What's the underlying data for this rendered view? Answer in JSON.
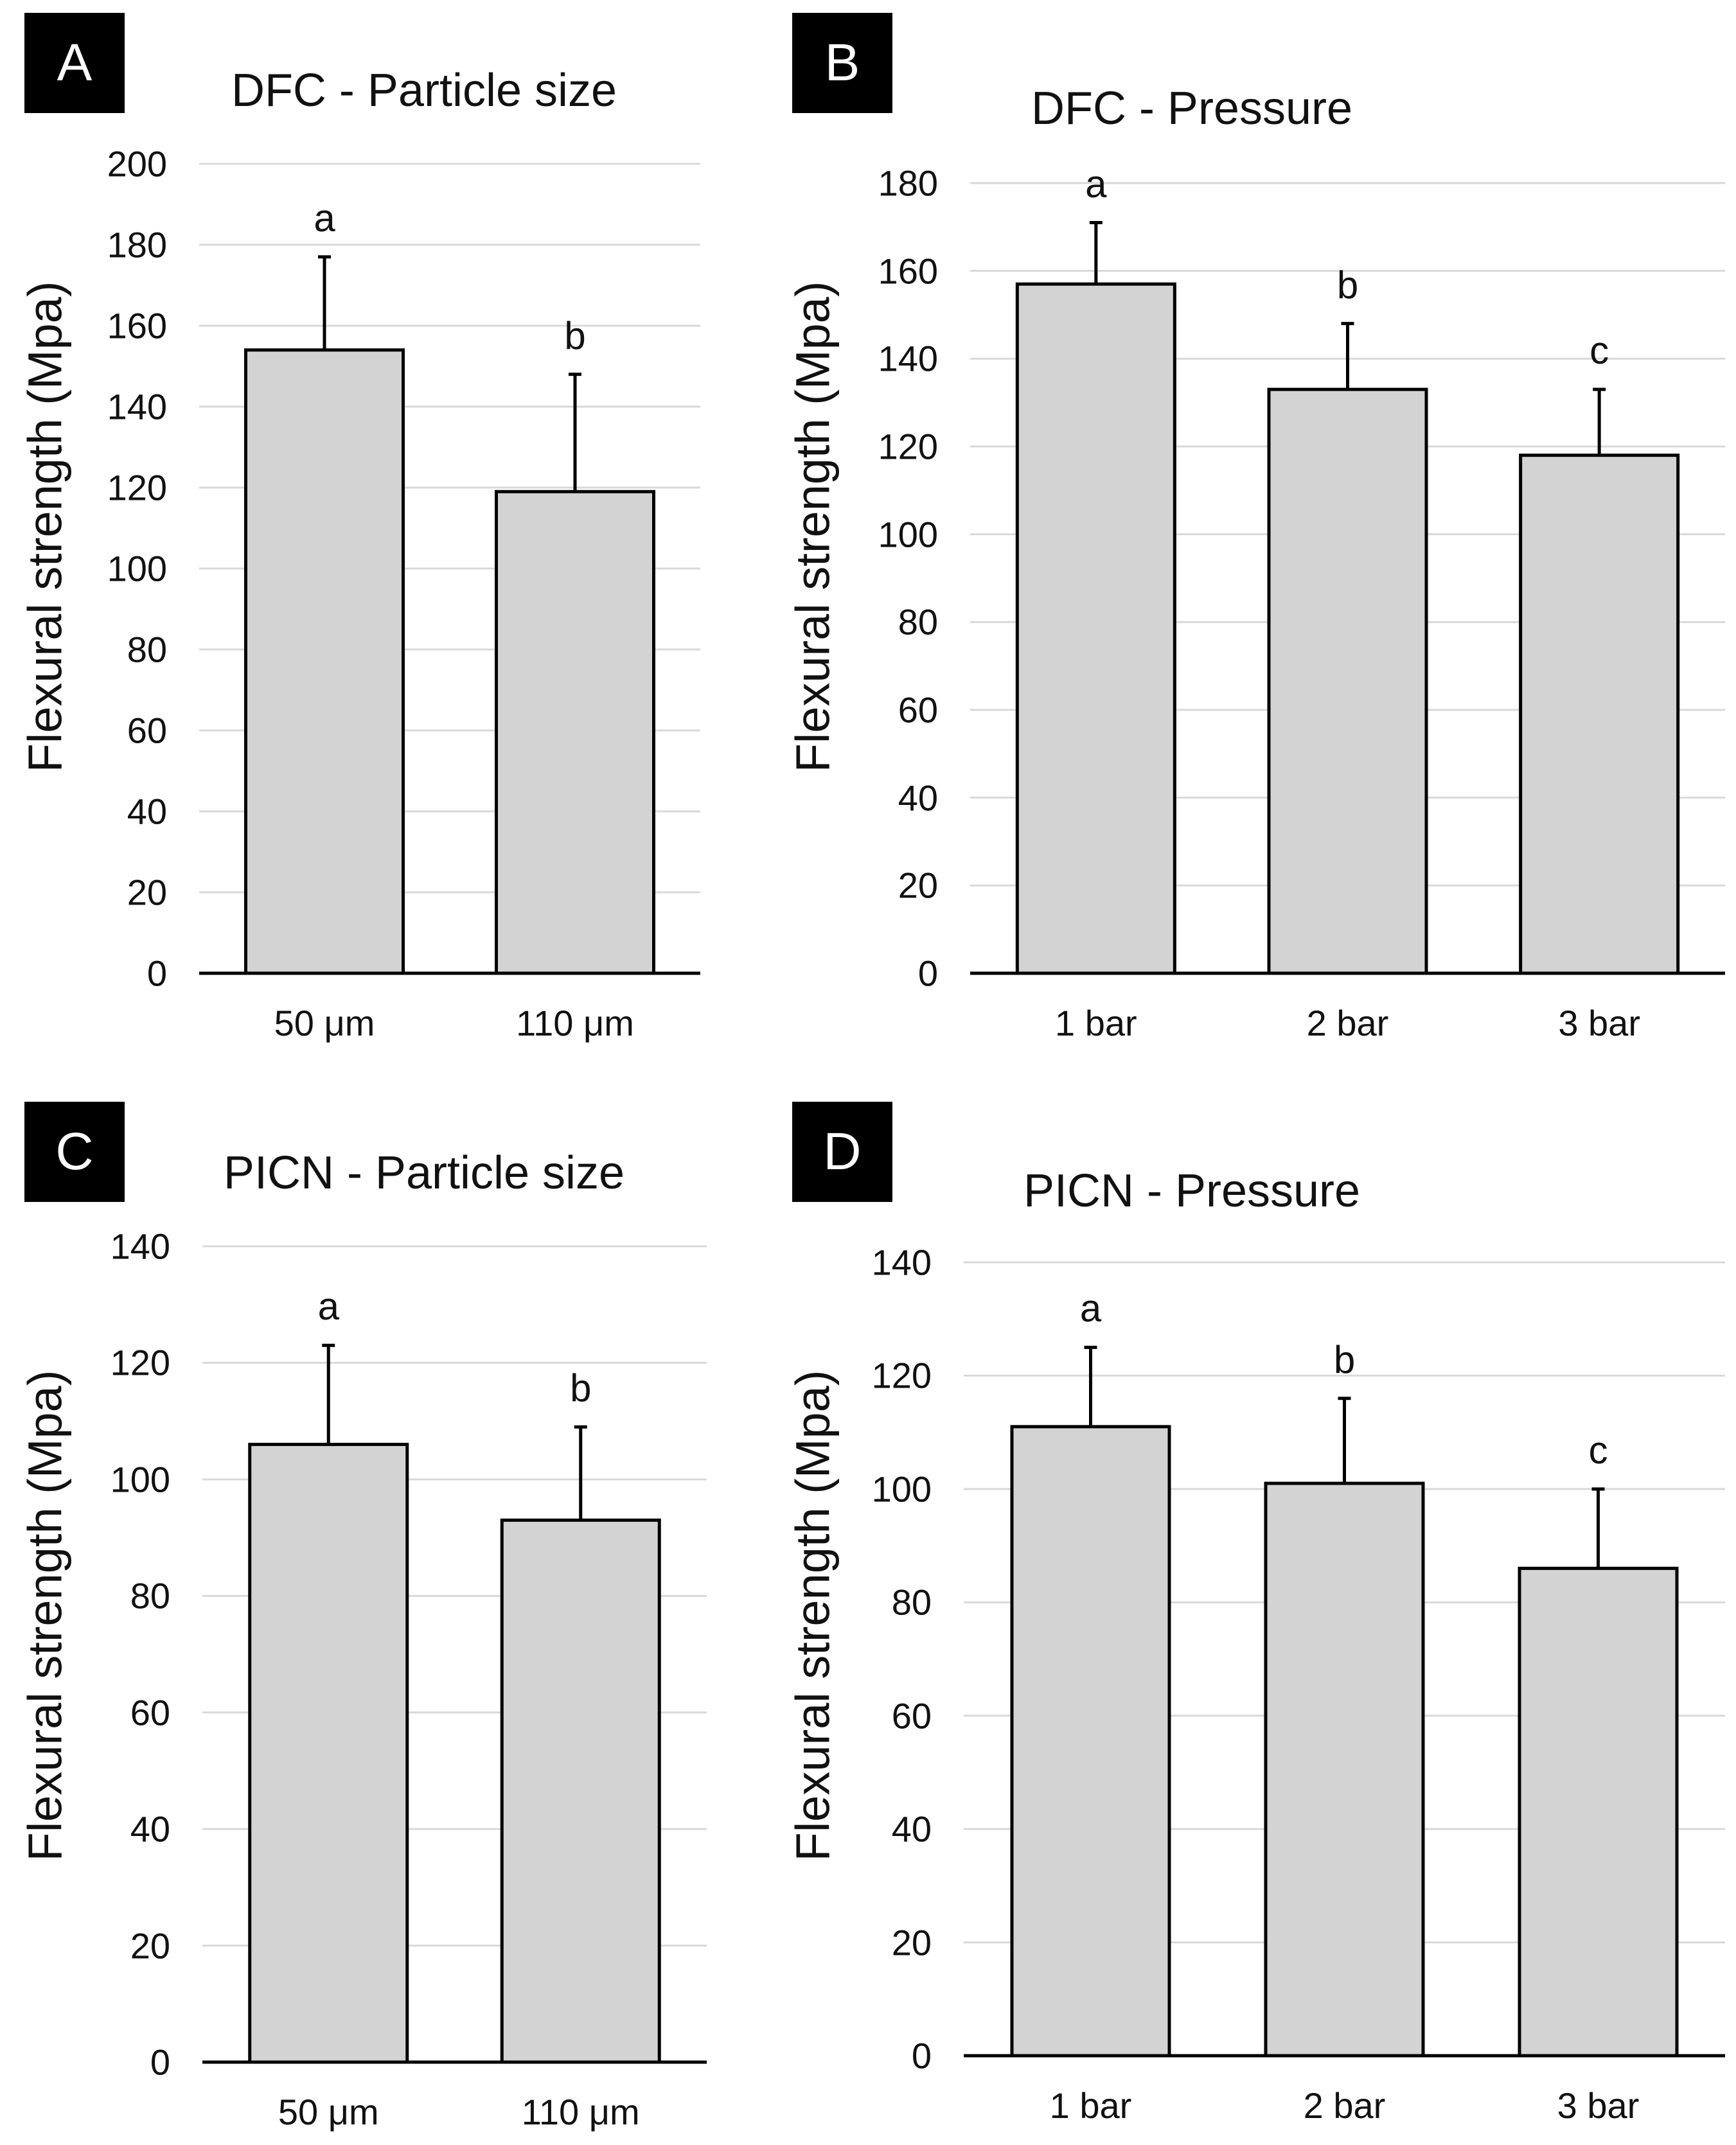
{
  "colors": {
    "bar_fill": "#d3d3d3",
    "bar_stroke": "#000000",
    "grid": "#d9d9d9",
    "axis": "#000000"
  },
  "chart_data": [
    {
      "id": "a",
      "type": "bar",
      "panel_letter": "A",
      "title": "DFC - Particle size",
      "ylabel": "Flexural strength (Mpa)",
      "xlabel": "",
      "ylim": [
        0,
        200
      ],
      "yticks": [
        0,
        20,
        40,
        60,
        80,
        100,
        120,
        140,
        160,
        180,
        200
      ],
      "categories": [
        "50 μm",
        "110 μm"
      ],
      "values": [
        154,
        119
      ],
      "errors": [
        23,
        29
      ],
      "significance": [
        "a",
        "b"
      ],
      "grid": true
    },
    {
      "id": "b",
      "type": "bar",
      "panel_letter": "B",
      "title": "DFC - Pressure",
      "ylabel": "Flexural strength (Mpa)",
      "xlabel": "",
      "ylim": [
        0,
        180
      ],
      "yticks": [
        0,
        20,
        40,
        60,
        80,
        100,
        120,
        140,
        160,
        180
      ],
      "categories": [
        "1 bar",
        "2 bar",
        "3 bar"
      ],
      "values": [
        157,
        133,
        118
      ],
      "errors": [
        14,
        15,
        15
      ],
      "significance": [
        "a",
        "b",
        "c"
      ],
      "grid": true
    },
    {
      "id": "c",
      "type": "bar",
      "panel_letter": "C",
      "title": "PICN - Particle size",
      "ylabel": "Flexural strength (Mpa)",
      "xlabel": "",
      "ylim": [
        0,
        140
      ],
      "yticks": [
        0,
        20,
        40,
        60,
        80,
        100,
        120,
        140
      ],
      "categories": [
        "50 μm",
        "110 μm"
      ],
      "values": [
        106,
        93
      ],
      "errors": [
        17,
        16
      ],
      "significance": [
        "a",
        "b"
      ],
      "grid": true
    },
    {
      "id": "d",
      "type": "bar",
      "panel_letter": "D",
      "title": "PICN - Pressure",
      "ylabel": "Flexural strength (Mpa)",
      "xlabel": "",
      "ylim": [
        0,
        140
      ],
      "yticks": [
        0,
        20,
        40,
        60,
        80,
        100,
        120,
        140
      ],
      "categories": [
        "1 bar",
        "2 bar",
        "3 bar"
      ],
      "values": [
        111,
        101,
        86
      ],
      "errors": [
        14,
        15,
        14
      ],
      "significance": [
        "a",
        "b",
        "c"
      ],
      "grid": true
    }
  ]
}
